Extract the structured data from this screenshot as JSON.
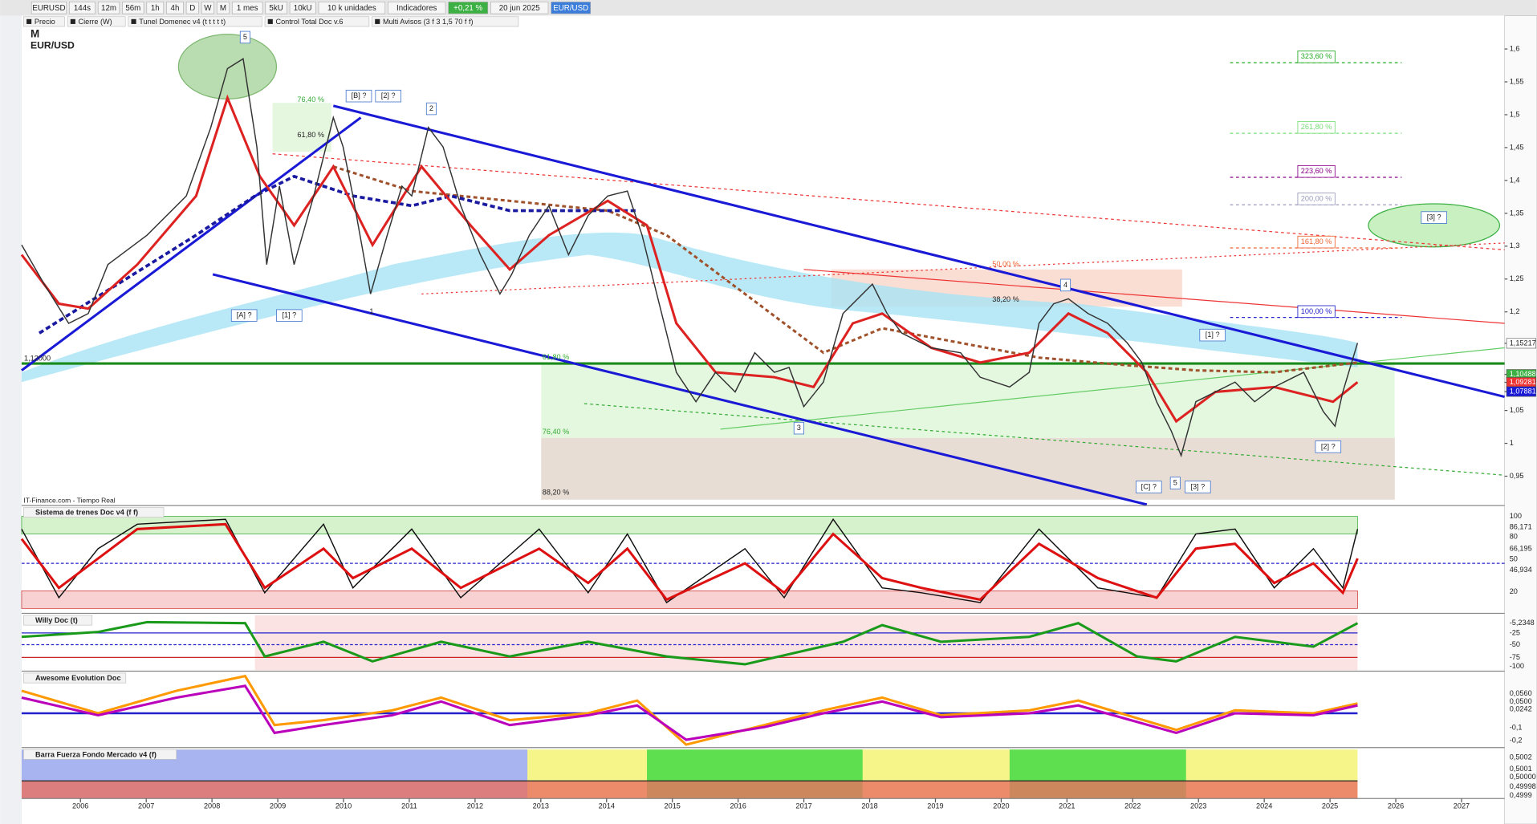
{
  "toolbar": {
    "items": [
      "EURUSD",
      "144s",
      "12m",
      "56m",
      "1h",
      "4h",
      "D",
      "W",
      "M",
      "1 mes",
      "5kU",
      "10kU",
      "10 k unidades",
      "Indicadores",
      "+0,21 %",
      "20 jun 2025",
      "EUR/USD"
    ]
  },
  "legend": {
    "items": [
      "Precio",
      "Cierre (W)",
      "Tunel Domenec v4 (t t t t t)",
      "Control Total Doc v.6",
      "Multi Avisos (3 f 3 1,5 70 f f)"
    ]
  },
  "chart": {
    "title": "M",
    "symbol": "EUR/USD",
    "source": "IT-Finance.com - Tiempo Real",
    "price_axis": [
      {
        "value": 1.6,
        "label": "1,6"
      },
      {
        "value": 1.55,
        "label": "1,55"
      },
      {
        "value": 1.5,
        "label": "1,5"
      },
      {
        "value": 1.45,
        "label": "1,45"
      },
      {
        "value": 1.4,
        "label": "1,4"
      },
      {
        "value": 1.35,
        "label": "1,35"
      },
      {
        "value": 1.3,
        "label": "1,3"
      },
      {
        "value": 1.25,
        "label": "1,25"
      },
      {
        "value": 1.2,
        "label": "1,2"
      },
      {
        "value": 1.15217,
        "label": "1,15217"
      },
      {
        "value": 1.10488,
        "label": "1,10488"
      },
      {
        "value": 1.09281,
        "label": "1,09281"
      },
      {
        "value": 1.07881,
        "label": "1,07881"
      },
      {
        "value": 1.05,
        "label": "1,05"
      },
      1,
      {
        "value": 0.95,
        "label": "0,95"
      }
    ],
    "years": [
      2006,
      2007,
      2008,
      2009,
      2010,
      2011,
      2012,
      2013,
      2014,
      2015,
      2016,
      2017,
      2018,
      2019,
      2020,
      2021,
      2022,
      2023,
      2024,
      2025,
      2026,
      2027
    ],
    "annotations": [
      "5",
      "[B] ?",
      "[2] ?",
      "2",
      "76,40 %",
      "61,80 %",
      "[A] ?",
      "[1] ?",
      "1",
      "1,12000",
      "61,80 %",
      "76,40 %",
      "88,20 %",
      "50,00 %",
      "38,20 %",
      "3",
      "4",
      "[1] ?",
      "[C] ?",
      "5",
      "[3] ?",
      "[2] ?",
      "323,60 %",
      "261,80 %",
      "223,60 %",
      "200,00 %",
      "161,80 %",
      "100,00 %",
      "[3] ?"
    ]
  },
  "panels": [
    {
      "title": "Sistema de trenes Doc v4 (f f)",
      "axis": [
        "100",
        "86,171",
        "80",
        "66,195",
        "50",
        "46,934",
        "20"
      ]
    },
    {
      "title": "Willy Doc (t)",
      "axis": [
        "-5,2348",
        "-25",
        "-50",
        "-75",
        "-100"
      ]
    },
    {
      "title": "Awesome Evolution Doc",
      "axis": [
        "0,0560",
        "0,0500",
        "0,0242",
        "-0,1",
        "-0,2"
      ]
    },
    {
      "title": "Barra Fuerza Fondo Mercado v4 (f)",
      "axis": [
        "0,5002",
        "0,5001",
        "0,50000",
        "0,49998",
        "0,4999"
      ]
    }
  ]
}
